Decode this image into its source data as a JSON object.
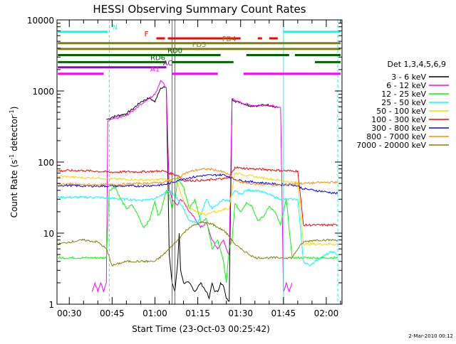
{
  "chart_data": {
    "type": "line",
    "title": "HESSI Observing Summary Count Rates",
    "xlabel": "Start Time (23-Oct-03 00:25:42)",
    "ylabel": "Count Rate (s⁻¹ detector⁻¹)",
    "ylabel_parts": {
      "base": "Count Rate (s",
      "sup1": "-1",
      "mid": " detector",
      "sup2": "-1",
      "end": ")"
    },
    "footer_date": "2-Mar-2010 00:12",
    "legend_title": "Det 1,3,4,5,6,9",
    "xlim": [
      25.7,
      125.5
    ],
    "ylim": [
      1,
      10000
    ],
    "y_scale": "log",
    "x_ticks": [
      {
        "v": 30,
        "label": "00:30"
      },
      {
        "v": 45,
        "label": "00:45"
      },
      {
        "v": 60,
        "label": "01:00"
      },
      {
        "v": 75,
        "label": "01:15"
      },
      {
        "v": 90,
        "label": "01:30"
      },
      {
        "v": 105,
        "label": "01:45"
      },
      {
        "v": 120,
        "label": "02:00"
      }
    ],
    "y_ticks": [
      {
        "v": 1,
        "label": "1"
      },
      {
        "v": 10,
        "label": "10"
      },
      {
        "v": 100,
        "label": "100"
      },
      {
        "v": 1000,
        "label": "1000"
      },
      {
        "v": 10000,
        "label": "10000"
      }
    ],
    "series": [
      {
        "name": "3 - 6 keV",
        "color": "#000000",
        "x": [
          43,
          43.5,
          45,
          50,
          52,
          55,
          58,
          60,
          61,
          62,
          63,
          64,
          65,
          66,
          67,
          68,
          68.5,
          69,
          70,
          72,
          74,
          76,
          78,
          79,
          80,
          81,
          82,
          83,
          84,
          85,
          86,
          87,
          88,
          90,
          93,
          96,
          99,
          101,
          103
        ],
        "y": [
          400,
          400,
          430,
          480,
          550,
          700,
          800,
          700,
          900,
          1100,
          1150,
          1100,
          5,
          2,
          1.5,
          4,
          10,
          3,
          2,
          2,
          1.5,
          2,
          1.5,
          1.2,
          2,
          1.5,
          1.5,
          2,
          1.8,
          1.2,
          1.1,
          780,
          720,
          690,
          620,
          620,
          640,
          620,
          580
        ]
      },
      {
        "name": "6 - 12 keV",
        "color": "#ff00ff",
        "x": [
          38,
          39,
          40,
          41,
          42,
          43,
          43.5,
          45,
          50,
          52,
          55,
          58,
          60,
          62,
          63,
          64,
          65,
          66,
          68,
          69,
          70,
          72,
          74,
          76,
          78,
          80,
          82,
          84,
          85,
          86,
          87,
          88,
          90,
          93,
          96,
          99,
          101,
          103,
          104,
          105,
          106,
          107,
          108
        ],
        "y": [
          1.5,
          2,
          1.5,
          2,
          1.5,
          2,
          380,
          400,
          450,
          520,
          650,
          780,
          900,
          1400,
          1300,
          1100,
          40,
          30,
          25,
          30,
          28,
          20,
          16,
          12,
          14,
          8,
          6,
          8,
          6,
          5,
          780,
          720,
          690,
          640,
          620,
          640,
          620,
          580,
          580,
          1.5,
          2,
          1.5,
          2
        ]
      },
      {
        "name": "12 - 25 keV",
        "color": "#00ff00",
        "x": [
          26,
          30,
          35,
          40,
          43,
          44,
          46,
          48,
          50,
          52,
          54,
          56,
          58,
          60,
          61,
          62,
          63,
          64,
          65,
          66,
          67,
          68,
          70,
          72,
          74,
          76,
          78,
          80,
          82,
          84,
          85,
          86,
          87,
          88,
          90,
          92,
          94,
          96,
          98,
          100,
          102,
          104,
          106,
          108,
          110,
          112,
          114,
          116,
          118,
          120,
          122,
          124
        ],
        "y": [
          4.5,
          4.5,
          4.5,
          4.5,
          4.5,
          40,
          45,
          30,
          22,
          25,
          18,
          12,
          15,
          28,
          18,
          20,
          28,
          40,
          35,
          22,
          30,
          60,
          45,
          22,
          30,
          14,
          16,
          6,
          8,
          4,
          2,
          6,
          8,
          26,
          20,
          27,
          24,
          15,
          17,
          24,
          20,
          13,
          30,
          4.5,
          4.5,
          4.5,
          4.5,
          4.5,
          4.5,
          4.5,
          4.5,
          4.5
        ]
      },
      {
        "name": "25 - 50 keV",
        "color": "#00ffff",
        "x": [
          26,
          30,
          35,
          40,
          44,
          50,
          55,
          60,
          63,
          65,
          68,
          70,
          72,
          75,
          78,
          80,
          84,
          86,
          88,
          90,
          92,
          94,
          96,
          100,
          104,
          106,
          108,
          110,
          112,
          114,
          116,
          118,
          120,
          122,
          124
        ],
        "y": [
          32,
          32,
          32,
          32,
          31,
          30,
          29,
          31,
          35,
          40,
          30,
          22,
          15,
          14,
          30,
          22,
          30,
          28,
          40,
          35,
          40,
          40,
          40,
          35,
          30,
          30,
          30,
          30,
          4,
          3.5,
          4,
          4.5,
          5,
          5.5,
          5
        ]
      },
      {
        "name": "50 - 100 keV",
        "color": "#ffd700",
        "x": [
          26,
          30,
          35,
          40,
          44,
          50,
          55,
          60,
          63,
          65,
          68,
          70,
          72,
          75,
          78,
          80,
          82,
          84,
          86,
          88,
          90,
          95,
          100,
          104,
          108,
          110,
          112,
          116,
          120,
          124
        ],
        "y": [
          63,
          62,
          60,
          60,
          58,
          57,
          56,
          56,
          58,
          55,
          50,
          28,
          22,
          20,
          18,
          20,
          20,
          22,
          22,
          70,
          68,
          62,
          58,
          55,
          52,
          52,
          7,
          7,
          7,
          7
        ]
      },
      {
        "name": "100 - 300 keV",
        "color": "#ff0000",
        "x": [
          26,
          30,
          35,
          40,
          44,
          50,
          55,
          60,
          63,
          65,
          68,
          70,
          72,
          75,
          78,
          80,
          84,
          86,
          88,
          90,
          95,
          100,
          104,
          108,
          110,
          112,
          116,
          120,
          124
        ],
        "y": [
          75,
          76,
          76,
          74,
          72,
          73,
          73,
          74,
          75,
          70,
          65,
          55,
          55,
          55,
          55,
          57,
          58,
          60,
          85,
          82,
          80,
          78,
          76,
          75,
          75,
          13,
          13,
          13,
          13
        ]
      },
      {
        "name": "300 - 800 keV",
        "color": "#0000ff",
        "x": [
          26,
          30,
          35,
          40,
          44,
          50,
          55,
          60,
          63,
          65,
          68,
          70,
          72,
          75,
          78,
          80,
          82,
          84,
          86,
          88,
          90,
          95,
          100,
          104,
          108,
          110,
          112,
          116,
          120,
          124
        ],
        "y": [
          47,
          47,
          46,
          46,
          46,
          46,
          46,
          47,
          48,
          50,
          55,
          58,
          60,
          63,
          65,
          65,
          66,
          66,
          62,
          57,
          55,
          52,
          50,
          48,
          48,
          46,
          42,
          40,
          38,
          36
        ]
      },
      {
        "name": "800 - 7000 keV",
        "color": "#ff8c00",
        "x": [
          26,
          30,
          35,
          40,
          44,
          50,
          55,
          60,
          63,
          65,
          68,
          70,
          72,
          75,
          78,
          80,
          82,
          84,
          86,
          88,
          90,
          95,
          100,
          104,
          108,
          110,
          112,
          116,
          120,
          124
        ],
        "y": [
          49,
          49,
          48,
          48,
          48,
          49,
          50,
          51,
          52,
          55,
          60,
          68,
          73,
          78,
          80,
          79,
          76,
          72,
          66,
          56,
          52,
          49,
          48,
          48,
          49,
          50,
          50,
          51,
          52,
          52
        ]
      },
      {
        "name": "7000 - 20000 keV",
        "color": "#808000",
        "x": [
          26,
          30,
          35,
          40,
          43,
          45,
          50,
          55,
          60,
          63,
          65,
          68,
          70,
          72,
          74,
          76,
          78,
          80,
          82,
          84,
          86,
          88,
          90,
          95,
          100,
          104,
          106,
          108,
          110,
          112,
          116,
          120,
          124
        ],
        "y": [
          7,
          7.5,
          8,
          7.5,
          6,
          3.5,
          4,
          4,
          4,
          5,
          6,
          8,
          10,
          12,
          13,
          14,
          14,
          13.5,
          12,
          11,
          9,
          7,
          6,
          4.5,
          4.5,
          4.5,
          4.5,
          4.5,
          6,
          7.5,
          8,
          8,
          8
        ]
      }
    ],
    "flags": [
      {
        "label": "N",
        "color": "#00ffff",
        "y": 6800,
        "segments": [
          [
            26,
            43.5
          ],
          [
            105,
            125
          ]
        ],
        "label_x": 46
      },
      {
        "label": "F",
        "color": "#ff0000",
        "y": 5500,
        "segments": [
          [
            60.5,
            63.5
          ],
          [
            64.5,
            90
          ],
          [
            96,
            97.5
          ],
          [
            100,
            103
          ]
        ],
        "label_x": 57
      },
      {
        "label": "FD4",
        "color": "#808000",
        "y": 4700,
        "segments": [
          [
            26,
            125
          ]
        ],
        "label_x": 86
      },
      {
        "label": "FD5",
        "color": "#808000",
        "y": 3900,
        "segments": [
          [
            26,
            125
          ]
        ],
        "label_x": 75.5
      },
      {
        "label": "RD0",
        "color": "#006400",
        "y": 3200,
        "segments": [
          [
            26,
            83
          ],
          [
            92,
            107
          ],
          [
            109,
            125
          ]
        ],
        "label_x": 67
      },
      {
        "label": "RD6",
        "color": "#006400",
        "y": 2550,
        "segments": [
          [
            26,
            64
          ],
          [
            66,
            87.5
          ],
          [
            116,
            125
          ]
        ],
        "label_x": 61
      },
      {
        "label": "AC",
        "color": "#9900cc",
        "y": 2150,
        "segments": [
          [
            26,
            64
          ]
        ],
        "label_x": 64.5
      },
      {
        "label": "A1",
        "color": "#ff00ff",
        "y": 1750,
        "segments": [
          [
            26,
            42
          ],
          [
            66,
            82
          ],
          [
            91,
            125
          ]
        ],
        "label_x": 60
      }
    ],
    "vlines": [
      {
        "x": 44,
        "color": "#00ffff",
        "dash": "4,3"
      },
      {
        "x": 66,
        "color": "#ff00ff",
        "dash": ""
      },
      {
        "x": 67,
        "color": "#ff00ff",
        "dash": ""
      },
      {
        "x": 105,
        "color": "#00ffff",
        "dash": ""
      },
      {
        "x": 124,
        "color": "#00ffff",
        "dash": "4,3"
      }
    ]
  }
}
